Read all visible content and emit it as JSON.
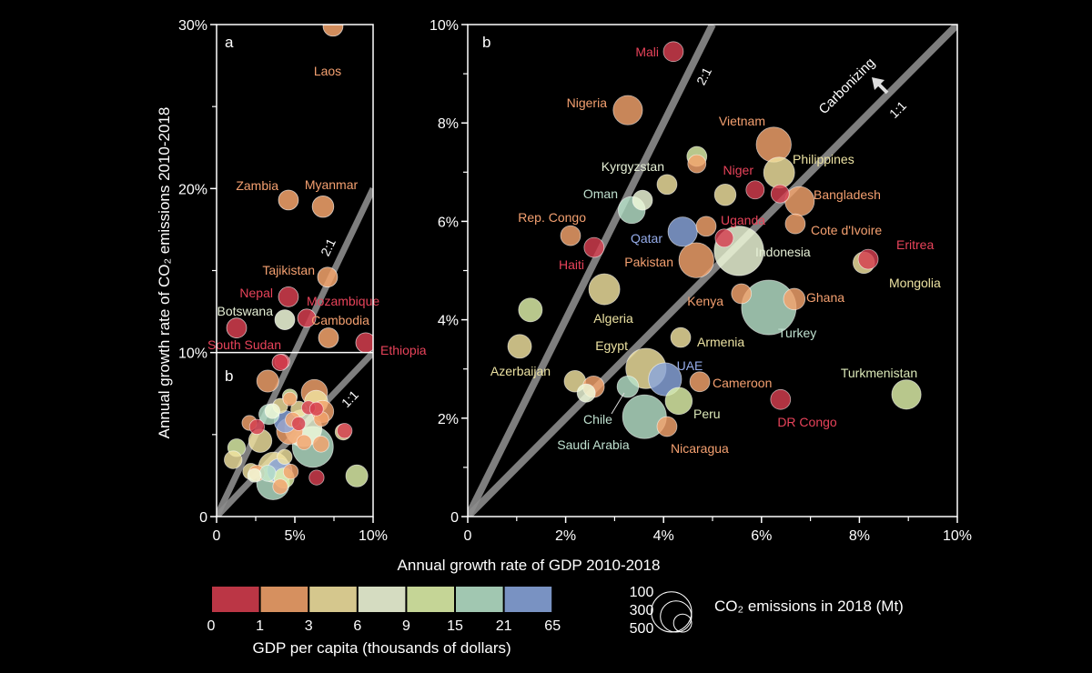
{
  "chart_data": [
    {
      "type": "scatter",
      "panel_label": "a",
      "inset_label": "b",
      "xlim": [
        0,
        10
      ],
      "ylim": [
        0,
        30
      ],
      "x_ticks": [
        "0",
        "5%",
        "10%"
      ],
      "y_ticks": [
        "0",
        "10%",
        "20%",
        "30%"
      ],
      "reference_lines": [
        {
          "label": "2:1",
          "slope": 2
        },
        {
          "label": "1:1",
          "slope": 1
        }
      ],
      "points": [
        {
          "name": "Laos",
          "x": 7.44,
          "y": 29.9,
          "emissions": 60,
          "cat": 1
        },
        {
          "name": "Zambia",
          "x": 4.59,
          "y": 19.3,
          "emissions": 60,
          "cat": 1
        },
        {
          "name": "Myanmar",
          "x": 6.8,
          "y": 18.9,
          "emissions": 70,
          "cat": 1
        },
        {
          "name": "Tajikistan",
          "x": 7.09,
          "y": 14.6,
          "emissions": 60,
          "cat": 1
        },
        {
          "name": "Nepal",
          "x": 4.59,
          "y": 13.4,
          "emissions": 60,
          "cat": 0
        },
        {
          "name": "Mozambique",
          "x": 5.76,
          "y": 12.1,
          "emissions": 50,
          "cat": 0
        },
        {
          "name": "Botswana",
          "x": 4.36,
          "y": 12.0,
          "emissions": 60,
          "cat": 3
        },
        {
          "name": "Cambodia",
          "x": 7.15,
          "y": 10.9,
          "emissions": 60,
          "cat": 1
        },
        {
          "name": "South Sudan",
          "x": 1.28,
          "y": 11.5,
          "emissions": 60,
          "cat": 0
        },
        {
          "name": "Ethiopia",
          "x": 9.53,
          "y": 10.6,
          "emissions": 60,
          "cat": 0
        },
        {
          "name": "",
          "x": 4.07,
          "y": 9.4,
          "emissions": 40,
          "cat": 0
        }
      ]
    },
    {
      "type": "scatter",
      "panel_label": "b",
      "xlim": [
        0,
        10
      ],
      "ylim": [
        0,
        10
      ],
      "x_ticks": [
        "0",
        "2%",
        "4%",
        "6%",
        "8%",
        "10%"
      ],
      "y_ticks": [
        "0",
        "2%",
        "4%",
        "6%",
        "8%",
        "10%"
      ],
      "xlabel": "Annual growth rate of GDP 2010-2018",
      "ylabel": "Annual growth rate of CO₂ emissions 2010-2018",
      "reference_lines": [
        {
          "label": "2:1",
          "slope": 2
        },
        {
          "label": "1:1",
          "slope": 1
        }
      ],
      "annotation": "Carbonizing",
      "points": [
        {
          "name": "Mali",
          "x": 4.2,
          "y": 9.45,
          "emissions": 60,
          "cat": 0
        },
        {
          "name": "Nigeria",
          "x": 3.27,
          "y": 8.26,
          "emissions": 130,
          "cat": 1
        },
        {
          "name": "Vietnam",
          "x": 6.25,
          "y": 7.56,
          "emissions": 185,
          "cat": 1
        },
        {
          "name": "",
          "x": 4.68,
          "y": 7.32,
          "emissions": 60,
          "cat": 4
        },
        {
          "name": "",
          "x": 4.68,
          "y": 7.17,
          "emissions": 50,
          "cat": 1
        },
        {
          "name": "",
          "x": 4.07,
          "y": 6.75,
          "emissions": 60,
          "cat": 2
        },
        {
          "name": "Kyrgyzstan",
          "x": 3.57,
          "y": 6.43,
          "emissions": 60,
          "cat": 3
        },
        {
          "name": "",
          "x": 5.26,
          "y": 6.54,
          "emissions": 70,
          "cat": 2
        },
        {
          "name": "Niger",
          "x": 5.87,
          "y": 6.64,
          "emissions": 50,
          "cat": 0
        },
        {
          "name": "",
          "x": 6.38,
          "y": 6.56,
          "emissions": 50,
          "cat": 0
        },
        {
          "name": "Philippines",
          "x": 6.36,
          "y": 6.99,
          "emissions": 145,
          "cat": 2
        },
        {
          "name": "Bangladesh",
          "x": 6.78,
          "y": 6.41,
          "emissions": 130,
          "cat": 1
        },
        {
          "name": "Oman",
          "x": 3.35,
          "y": 6.23,
          "emissions": 110,
          "cat": 5
        },
        {
          "name": "Rep. Congo",
          "x": 2.1,
          "y": 5.71,
          "emissions": 60,
          "cat": 1
        },
        {
          "name": "Haiti",
          "x": 2.58,
          "y": 5.47,
          "emissions": 60,
          "cat": 0
        },
        {
          "name": "Qatar",
          "x": 4.39,
          "y": 5.79,
          "emissions": 130,
          "cat": 6
        },
        {
          "name": "Uganda",
          "x": 5.24,
          "y": 5.66,
          "emissions": 50,
          "cat": 0
        },
        {
          "name": "",
          "x": 4.87,
          "y": 5.9,
          "emissions": 60,
          "cat": 1
        },
        {
          "name": "Indonesia",
          "x": 5.54,
          "y": 5.4,
          "emissions": 370,
          "cat": 3
        },
        {
          "name": "Pakistan",
          "x": 4.67,
          "y": 5.21,
          "emissions": 185,
          "cat": 1
        },
        {
          "name": "Cote d'Ivoire",
          "x": 6.69,
          "y": 5.95,
          "emissions": 60,
          "cat": 1
        },
        {
          "name": "Eritrea",
          "x": 8.18,
          "y": 5.23,
          "emissions": 60,
          "cat": 0
        },
        {
          "name": "Mongolia",
          "x": 8.09,
          "y": 5.16,
          "emissions": 70,
          "cat": 2
        },
        {
          "name": "Kenya",
          "x": 5.59,
          "y": 4.53,
          "emissions": 60,
          "cat": 1
        },
        {
          "name": "Ghana",
          "x": 6.67,
          "y": 4.42,
          "emissions": 70,
          "cat": 1
        },
        {
          "name": "Turkey",
          "x": 6.15,
          "y": 4.25,
          "emissions": 450,
          "cat": 5
        },
        {
          "name": "Algeria",
          "x": 2.79,
          "y": 4.62,
          "emissions": 145,
          "cat": 2
        },
        {
          "name": "",
          "x": 1.28,
          "y": 4.2,
          "emissions": 85,
          "cat": 4
        },
        {
          "name": "Armenia",
          "x": 4.35,
          "y": 3.64,
          "emissions": 60,
          "cat": 2
        },
        {
          "name": "Azerbaijan",
          "x": 1.06,
          "y": 3.46,
          "emissions": 85,
          "cat": 2
        },
        {
          "name": "Egypt",
          "x": 3.64,
          "y": 3.01,
          "emissions": 245,
          "cat": 2
        },
        {
          "name": "UAE",
          "x": 4.03,
          "y": 2.79,
          "emissions": 165,
          "cat": 6
        },
        {
          "name": "Cameroon",
          "x": 4.74,
          "y": 2.74,
          "emissions": 60,
          "cat": 1
        },
        {
          "name": "",
          "x": 2.19,
          "y": 2.75,
          "emissions": 70,
          "cat": 2
        },
        {
          "name": "",
          "x": 2.57,
          "y": 2.64,
          "emissions": 70,
          "cat": 1
        },
        {
          "name": "",
          "x": 2.42,
          "y": 2.51,
          "emissions": 50,
          "cat": 3
        },
        {
          "name": "Chile",
          "x": 3.27,
          "y": 2.64,
          "emissions": 70,
          "cat": 5
        },
        {
          "name": "Peru",
          "x": 4.31,
          "y": 2.35,
          "emissions": 110,
          "cat": 4
        },
        {
          "name": "Saudi Arabia",
          "x": 3.61,
          "y": 2.03,
          "emissions": 290,
          "cat": 5
        },
        {
          "name": "Nicaragua",
          "x": 4.07,
          "y": 1.83,
          "emissions": 60,
          "cat": 1
        },
        {
          "name": "DR Congo",
          "x": 6.39,
          "y": 2.38,
          "emissions": 60,
          "cat": 0
        },
        {
          "name": "Turkmenistan",
          "x": 8.96,
          "y": 2.48,
          "emissions": 130,
          "cat": 4
        }
      ]
    }
  ],
  "legend": {
    "color_title": "GDP per capita (thousands of dollars)",
    "color_breaks": [
      "0",
      "1",
      "3",
      "6",
      "9",
      "15",
      "21",
      "65"
    ],
    "colors": [
      "#d53e4f",
      "#f4a46c",
      "#f2e3a0",
      "#f2fbdc",
      "#e0f3ab",
      "#b7e2c9",
      "#8aa6dd"
    ],
    "label_colors": [
      "#e8435a",
      "#f4a070",
      "#ece2a2",
      "#e6f0d6",
      "#dbe8b8",
      "#bfe0cf",
      "#95acea"
    ],
    "size_title": "CO₂ emissions in 2018 (Mt)",
    "size_values": [
      "100",
      "300",
      "500"
    ]
  }
}
